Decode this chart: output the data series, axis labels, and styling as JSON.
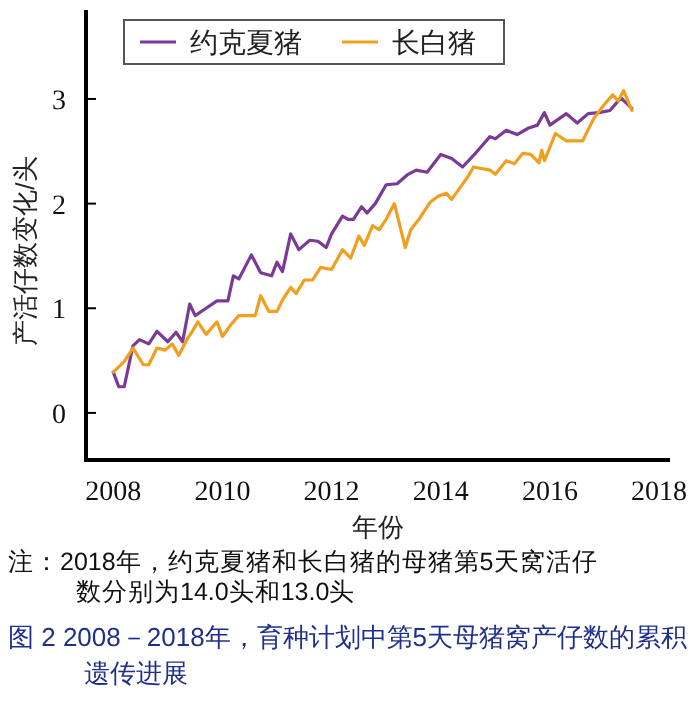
{
  "chart_data": {
    "type": "line",
    "xlabel": "年份",
    "ylabel": "产活仔数变化/头",
    "xlim": [
      2007.5,
      2018.2
    ],
    "xticks": [
      2008,
      2010,
      2012,
      2014,
      2016,
      2018
    ],
    "ylim": [
      -0.45,
      3.85
    ],
    "yticks": [
      0,
      1,
      2,
      3
    ],
    "grid": false,
    "legend": "top left",
    "marker": "none",
    "line_style": "solid",
    "series": [
      {
        "name": "约克夏猪",
        "color": "#7b3a96",
        "x": [
          2008.0,
          2008.1,
          2008.2,
          2008.36,
          2008.48,
          2008.65,
          2008.8,
          2009.0,
          2009.15,
          2009.27,
          2009.4,
          2009.5,
          2009.7,
          2009.9,
          2010.1,
          2010.2,
          2010.3,
          2010.53,
          2010.7,
          2010.9,
          2011.0,
          2011.1,
          2011.25,
          2011.4,
          2011.6,
          2011.75,
          2011.9,
          2012.0,
          2012.2,
          2012.3,
          2012.4,
          2012.55,
          2012.65,
          2012.8,
          2013.0,
          2013.2,
          2013.4,
          2013.55,
          2013.75,
          2014.0,
          2014.2,
          2014.4,
          2014.6,
          2014.9,
          2015.0,
          2015.2,
          2015.4,
          2015.6,
          2015.77,
          2015.9,
          2016.0,
          2016.3,
          2016.5,
          2016.7,
          2016.9,
          2017.1,
          2017.3,
          2017.5
        ],
        "values": [
          0.39,
          0.25,
          0.25,
          0.64,
          0.7,
          0.66,
          0.78,
          0.68,
          0.77,
          0.68,
          1.04,
          0.93,
          1.0,
          1.07,
          1.07,
          1.31,
          1.28,
          1.51,
          1.34,
          1.31,
          1.44,
          1.35,
          1.71,
          1.56,
          1.65,
          1.64,
          1.58,
          1.71,
          1.88,
          1.85,
          1.85,
          1.97,
          1.91,
          2.0,
          2.18,
          2.19,
          2.28,
          2.32,
          2.3,
          2.47,
          2.43,
          2.35,
          2.46,
          2.64,
          2.62,
          2.7,
          2.66,
          2.72,
          2.75,
          2.87,
          2.75,
          2.86,
          2.77,
          2.86,
          2.87,
          2.89,
          3.01,
          2.91
        ]
      },
      {
        "name": "长白猪",
        "color": "#f0a01e",
        "x": [
          2008.0,
          2008.2,
          2008.36,
          2008.55,
          2008.65,
          2008.8,
          2008.95,
          2009.08,
          2009.2,
          2009.37,
          2009.45,
          2009.55,
          2009.7,
          2009.9,
          2010.0,
          2010.15,
          2010.3,
          2010.6,
          2010.7,
          2010.85,
          2011.0,
          2011.1,
          2011.25,
          2011.35,
          2011.5,
          2011.65,
          2011.8,
          2012.0,
          2012.2,
          2012.35,
          2012.5,
          2012.6,
          2012.75,
          2012.87,
          2013.0,
          2013.15,
          2013.35,
          2013.45,
          2013.6,
          2013.8,
          2013.95,
          2014.1,
          2014.2,
          2014.5,
          2014.6,
          2014.9,
          2015.0,
          2015.2,
          2015.35,
          2015.5,
          2015.65,
          2015.8,
          2015.85,
          2015.9,
          2016.1,
          2016.3,
          2016.6,
          2016.8,
          2016.97,
          2017.15,
          2017.25,
          2017.35,
          2017.5
        ],
        "values": [
          0.39,
          0.49,
          0.62,
          0.46,
          0.46,
          0.62,
          0.6,
          0.66,
          0.55,
          0.72,
          0.78,
          0.87,
          0.75,
          0.87,
          0.73,
          0.84,
          0.93,
          0.93,
          1.12,
          0.97,
          0.97,
          1.08,
          1.2,
          1.14,
          1.27,
          1.27,
          1.39,
          1.37,
          1.56,
          1.48,
          1.69,
          1.6,
          1.79,
          1.75,
          1.85,
          2.0,
          1.58,
          1.75,
          1.85,
          2.01,
          2.07,
          2.1,
          2.04,
          2.26,
          2.35,
          2.32,
          2.28,
          2.41,
          2.38,
          2.48,
          2.47,
          2.39,
          2.51,
          2.41,
          2.67,
          2.6,
          2.6,
          2.81,
          2.93,
          3.04,
          2.98,
          3.08,
          2.89
        ]
      }
    ],
    "annotations": [
      "注：2018年，约克夏猪和长白猪的母猪第5天窝活仔数分别为14.0头和13.0头",
      "图 2  2008－2018年，育种计划中第5天母猪窝产仔数的累积遗传进展"
    ]
  }
}
